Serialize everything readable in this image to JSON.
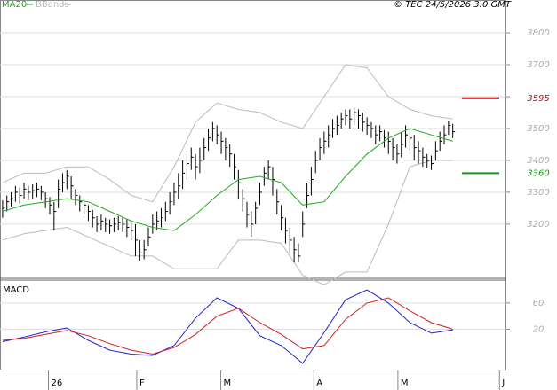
{
  "chart_data": [
    {
      "type": "ohlc",
      "credit": "© TEC 24/5/2026 3:0 GMT",
      "color": "#000000",
      "x": [
        0,
        1,
        2,
        3,
        4,
        5,
        6,
        7,
        8,
        9,
        10,
        11,
        12,
        13,
        14,
        15,
        16,
        17,
        18,
        19,
        20,
        21,
        22,
        23,
        24,
        25,
        26,
        27,
        28,
        29,
        30,
        31,
        32,
        33,
        34,
        35,
        36,
        37,
        38,
        39,
        40,
        41,
        42,
        43,
        44,
        45,
        46,
        47,
        48,
        49,
        50,
        51,
        52,
        53,
        54,
        55,
        56,
        57,
        58,
        59,
        60,
        61,
        62,
        63,
        64,
        65,
        66,
        67,
        68,
        69,
        70,
        71,
        72,
        73,
        74,
        75,
        76,
        77,
        78,
        79,
        80,
        81,
        82,
        83,
        84,
        85,
        86,
        87,
        88,
        89,
        90,
        91,
        92,
        93,
        94,
        95,
        96,
        97,
        98,
        99,
        100,
        101,
        102,
        103,
        104,
        105
      ],
      "high": [
        3275,
        3290,
        3300,
        3320,
        3315,
        3330,
        3320,
        3325,
        3330,
        3320,
        3300,
        3285,
        3270,
        3340,
        3360,
        3370,
        3350,
        3310,
        3290,
        3280,
        3260,
        3245,
        3225,
        3230,
        3220,
        3215,
        3220,
        3225,
        3220,
        3215,
        3205,
        3200,
        3150,
        3150,
        3190,
        3230,
        3240,
        3250,
        3270,
        3300,
        3330,
        3360,
        3400,
        3430,
        3440,
        3420,
        3440,
        3470,
        3500,
        3520,
        3510,
        3490,
        3470,
        3450,
        3420,
        3370,
        3310,
        3270,
        3240,
        3270,
        3330,
        3380,
        3400,
        3380,
        3310,
        3260,
        3220,
        3190,
        3160,
        3140,
        3240,
        3330,
        3380,
        3430,
        3470,
        3490,
        3510,
        3530,
        3540,
        3550,
        3560,
        3560,
        3565,
        3560,
        3550,
        3535,
        3520,
        3510,
        3510,
        3495,
        3490,
        3470,
        3450,
        3490,
        3510,
        3500,
        3480,
        3460,
        3440,
        3420,
        3415,
        3460,
        3490,
        3510,
        3525,
        3515
      ],
      "low": [
        3220,
        3240,
        3255,
        3270,
        3265,
        3280,
        3275,
        3280,
        3285,
        3275,
        3250,
        3230,
        3180,
        3250,
        3300,
        3310,
        3280,
        3260,
        3240,
        3230,
        3210,
        3190,
        3175,
        3180,
        3175,
        3170,
        3175,
        3180,
        3175,
        3160,
        3150,
        3100,
        3085,
        3090,
        3130,
        3170,
        3180,
        3190,
        3210,
        3230,
        3260,
        3280,
        3310,
        3340,
        3370,
        3340,
        3360,
        3400,
        3430,
        3460,
        3450,
        3420,
        3400,
        3380,
        3340,
        3280,
        3240,
        3190,
        3160,
        3200,
        3260,
        3320,
        3340,
        3290,
        3230,
        3180,
        3140,
        3110,
        3080,
        3080,
        3160,
        3250,
        3290,
        3360,
        3400,
        3420,
        3440,
        3470,
        3480,
        3500,
        3510,
        3500,
        3510,
        3500,
        3490,
        3480,
        3470,
        3450,
        3460,
        3440,
        3420,
        3400,
        3390,
        3410,
        3440,
        3430,
        3400,
        3390,
        3380,
        3375,
        3370,
        3400,
        3430,
        3450,
        3480,
        3470
      ],
      "close": [
        3250,
        3270,
        3280,
        3300,
        3290,
        3310,
        3300,
        3305,
        3310,
        3300,
        3280,
        3260,
        3240,
        3310,
        3330,
        3350,
        3320,
        3290,
        3270,
        3260,
        3240,
        3220,
        3200,
        3210,
        3200,
        3195,
        3200,
        3205,
        3200,
        3190,
        3180,
        3150,
        3110,
        3120,
        3160,
        3200,
        3210,
        3220,
        3240,
        3270,
        3300,
        3320,
        3360,
        3390,
        3410,
        3380,
        3400,
        3440,
        3470,
        3500,
        3480,
        3460,
        3440,
        3420,
        3380,
        3330,
        3280,
        3230,
        3200,
        3250,
        3300,
        3360,
        3380,
        3340,
        3270,
        3220,
        3180,
        3150,
        3120,
        3100,
        3200,
        3290,
        3340,
        3400,
        3440,
        3460,
        3480,
        3500,
        3510,
        3530,
        3540,
        3530,
        3550,
        3540,
        3520,
        3510,
        3500,
        3480,
        3490,
        3470,
        3460,
        3440,
        3420,
        3450,
        3480,
        3470,
        3440,
        3430,
        3410,
        3400,
        3390,
        3430,
        3460,
        3480,
        3510,
        3490
      ],
      "series": [
        {
          "name": "MA20",
          "color": "#22aa22",
          "x": [
            0,
            5,
            10,
            15,
            20,
            25,
            30,
            35,
            40,
            45,
            50,
            55,
            60,
            65,
            70,
            75,
            80,
            85,
            90,
            95,
            100,
            105
          ],
          "values": [
            3240,
            3260,
            3270,
            3280,
            3270,
            3240,
            3210,
            3190,
            3180,
            3230,
            3290,
            3340,
            3350,
            3330,
            3260,
            3270,
            3350,
            3420,
            3470,
            3500,
            3480,
            3460
          ]
        },
        {
          "name": "BBands",
          "color": "#bbbbbb",
          "x": [
            0,
            5,
            10,
            15,
            20,
            25,
            30,
            35,
            40,
            45,
            50,
            55,
            60,
            65,
            70,
            75,
            80,
            85,
            90,
            95,
            100,
            105
          ],
          "upper": [
            3330,
            3360,
            3360,
            3380,
            3380,
            3340,
            3290,
            3270,
            3380,
            3520,
            3580,
            3560,
            3550,
            3520,
            3500,
            3600,
            3700,
            3690,
            3600,
            3560,
            3540,
            3530
          ],
          "lower": [
            3150,
            3170,
            3180,
            3190,
            3160,
            3130,
            3100,
            3100,
            3060,
            3060,
            3060,
            3150,
            3150,
            3140,
            3040,
            3010,
            3050,
            3050,
            3200,
            3380,
            3400,
            3400
          ]
        }
      ],
      "levels": [
        {
          "value": 3595,
          "color": "#cc0000"
        },
        {
          "value": 3360,
          "color": "#119911"
        }
      ],
      "ylim": [
        3033,
        3903
      ],
      "yticks": [
        3200,
        3300,
        3400,
        3500,
        3600,
        3700,
        3800
      ],
      "xlim": [
        -0.6,
        117.5
      ],
      "xticks": [
        {
          "value": 10.7,
          "label": "26"
        },
        {
          "value": 31.3,
          "label": "F"
        },
        {
          "value": 50.9,
          "label": "M"
        },
        {
          "value": 72.6,
          "label": "A"
        },
        {
          "value": 92.2,
          "label": "M"
        },
        {
          "value": 115.9,
          "label": "J"
        }
      ],
      "grid": true
    },
    {
      "type": "line",
      "title": "MACD",
      "series": [
        {
          "color": "#2222cc",
          "x": [
            0,
            5,
            10,
            15,
            20,
            25,
            30,
            35,
            40,
            45,
            50,
            55,
            60,
            65,
            70,
            75,
            80,
            85,
            90,
            95,
            100,
            105
          ],
          "values": [
            1,
            8,
            16,
            22,
            3,
            -12,
            -18,
            -20,
            -5,
            37,
            68,
            52,
            10,
            -5,
            -32,
            15,
            65,
            80,
            60,
            30,
            14,
            19
          ]
        },
        {
          "color": "#cc2222",
          "x": [
            0,
            5,
            10,
            15,
            20,
            25,
            30,
            35,
            40,
            45,
            50,
            55,
            60,
            65,
            70,
            75,
            80,
            85,
            90,
            95,
            100,
            105
          ],
          "values": [
            3,
            6,
            12,
            18,
            10,
            -2,
            -12,
            -18,
            -8,
            12,
            40,
            52,
            30,
            12,
            -10,
            -5,
            35,
            60,
            68,
            48,
            30,
            20
          ]
        }
      ],
      "ylim": [
        -43,
        95
      ],
      "yticks": [
        20,
        60
      ],
      "grid": true
    }
  ]
}
